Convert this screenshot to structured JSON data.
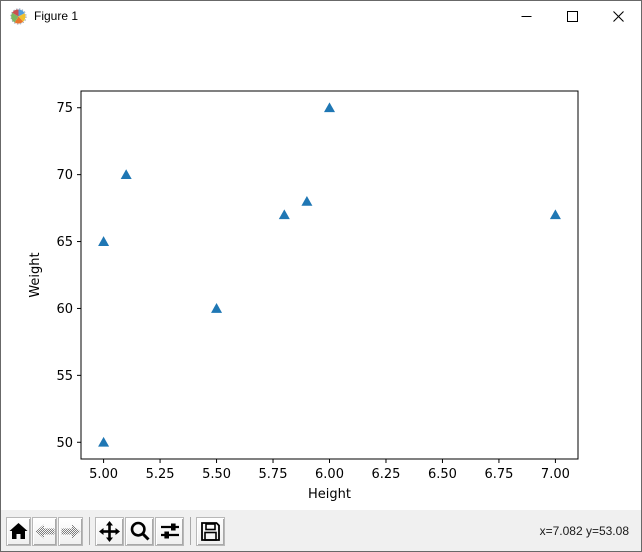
{
  "window": {
    "title": "Figure 1"
  },
  "titlebar": {
    "controls": [
      "minimize",
      "maximize",
      "close"
    ]
  },
  "chart_data": {
    "type": "scatter",
    "title": "",
    "xlabel": "Height",
    "ylabel": "Weight",
    "points": [
      [
        5.0,
        50
      ],
      [
        5.0,
        65
      ],
      [
        5.1,
        70
      ],
      [
        5.5,
        60
      ],
      [
        5.8,
        67
      ],
      [
        5.9,
        68
      ],
      [
        6.0,
        75
      ],
      [
        7.0,
        67
      ]
    ],
    "xlim": [
      4.9,
      7.1
    ],
    "ylim": [
      48.75,
      76.25
    ],
    "xticks": [
      5.0,
      5.25,
      5.5,
      5.75,
      6.0,
      6.25,
      6.5,
      6.75,
      7.0
    ],
    "xtick_labels": [
      "5.00",
      "5.25",
      "5.50",
      "5.75",
      "6.00",
      "6.25",
      "6.50",
      "6.75",
      "7.00"
    ],
    "yticks": [
      50,
      55,
      60,
      65,
      70,
      75
    ],
    "ytick_labels": [
      "50",
      "55",
      "60",
      "65",
      "70",
      "75"
    ],
    "marker": "triangle-up",
    "marker_color": "#1f77b4",
    "grid": false,
    "legend": null
  },
  "toolbar": {
    "coords_readout": "x=7.082 y=53.08",
    "buttons": [
      {
        "name": "home",
        "disabled": false
      },
      {
        "name": "back",
        "disabled": true
      },
      {
        "name": "forward",
        "disabled": true
      },
      {
        "name": "pan",
        "disabled": false
      },
      {
        "name": "zoom",
        "disabled": false
      },
      {
        "name": "configure-subplots",
        "disabled": false
      },
      {
        "name": "save",
        "disabled": false
      }
    ]
  }
}
